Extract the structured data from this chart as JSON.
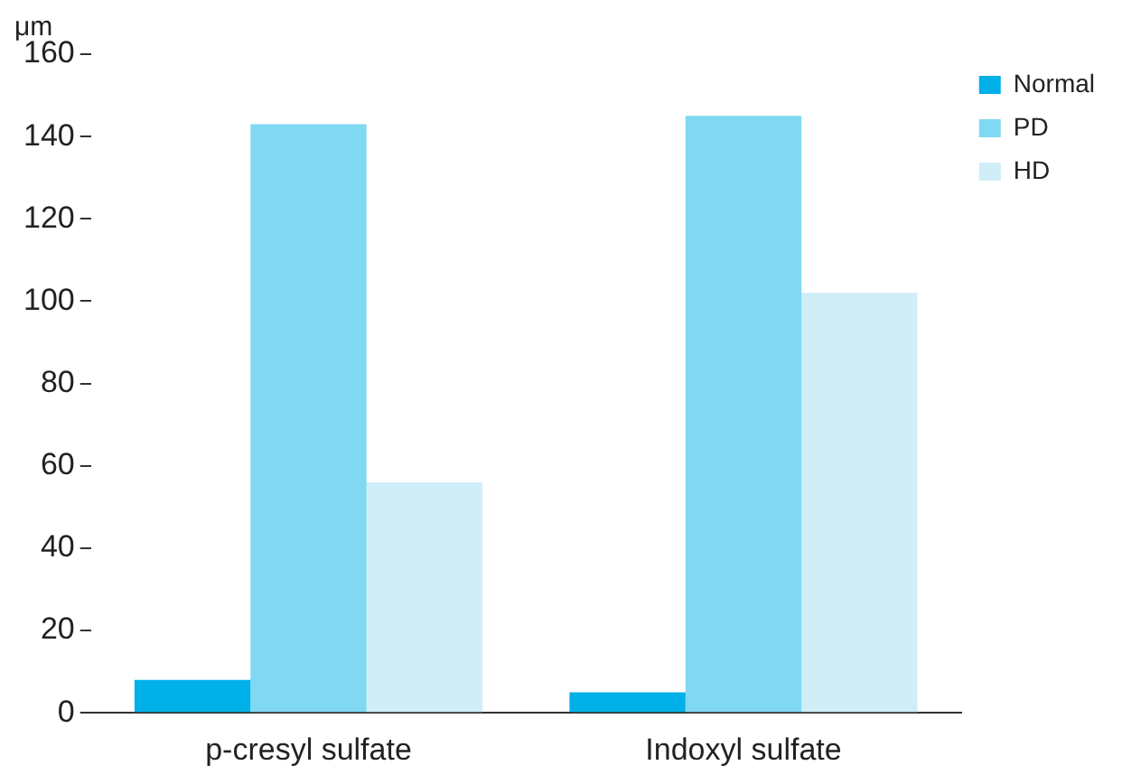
{
  "chart_data": {
    "type": "bar",
    "ylabel": "μm",
    "categories": [
      "p-cresyl sulfate",
      "Indoxyl sulfate"
    ],
    "series": [
      {
        "name": "Normal",
        "color": "#00b0e8",
        "values": [
          8,
          5
        ]
      },
      {
        "name": "PD",
        "color": "#80d8f2",
        "values": [
          143,
          145
        ]
      },
      {
        "name": "HD",
        "color": "#d0eef8",
        "values": [
          56,
          102
        ]
      }
    ],
    "ylim": [
      0,
      160
    ],
    "yticks": [
      0,
      20,
      40,
      60,
      80,
      100,
      120,
      140,
      160
    ],
    "grid": false,
    "legend": "top right"
  }
}
